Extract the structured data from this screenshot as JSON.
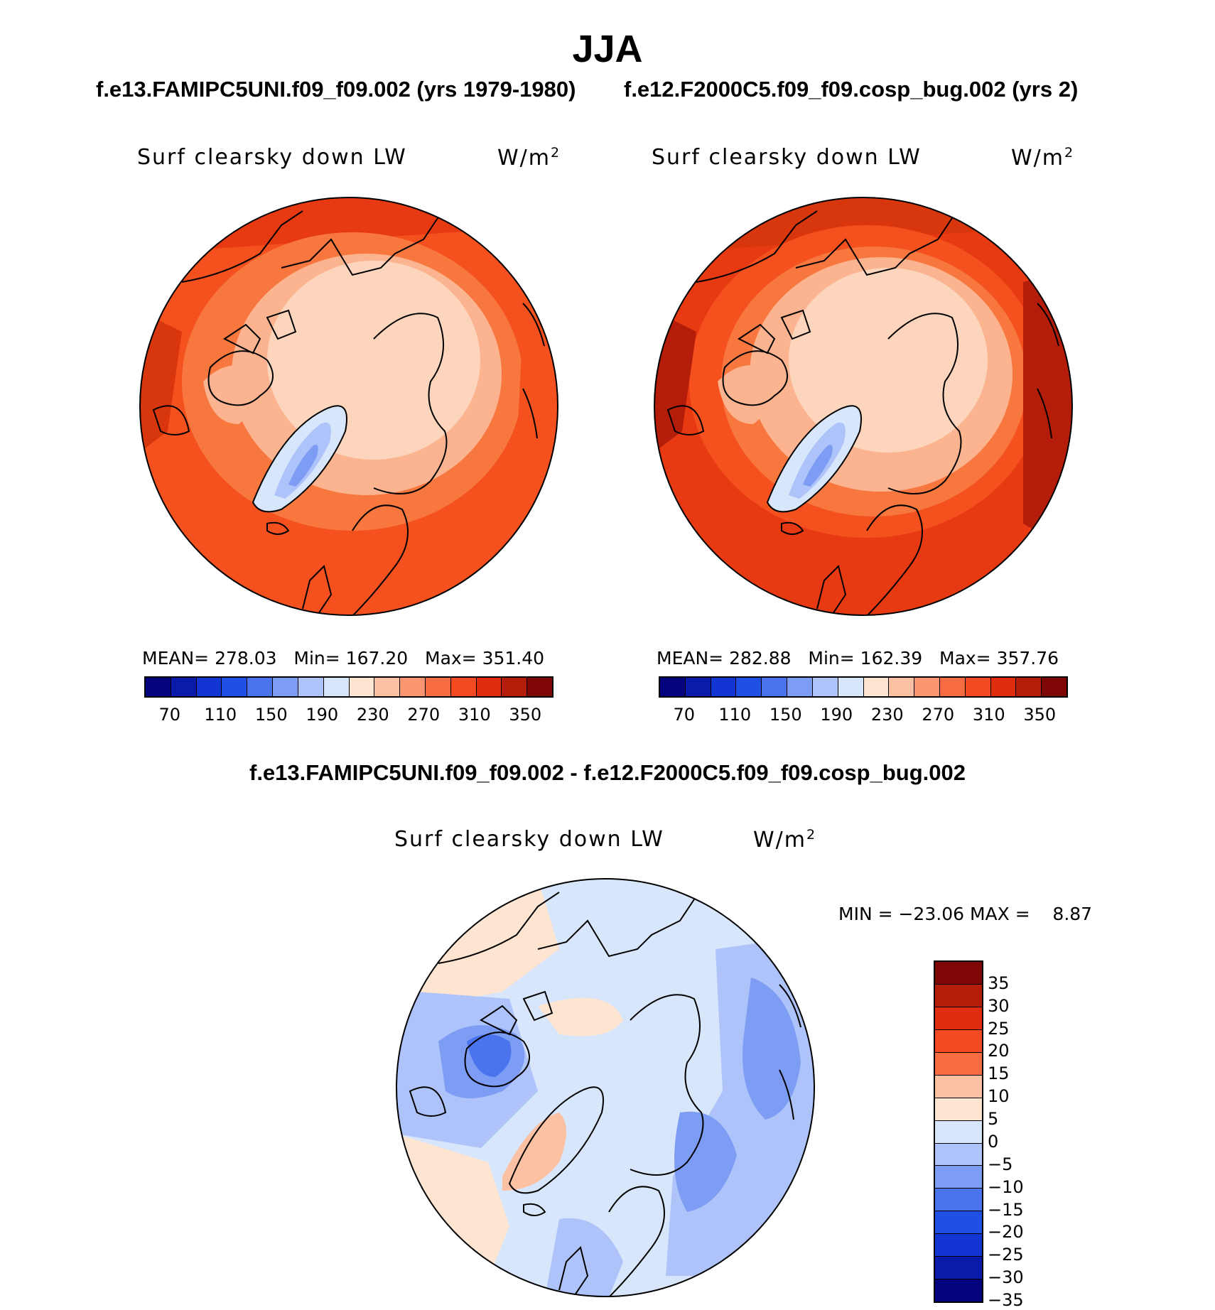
{
  "title": "JJA",
  "panel_left": {
    "case_title": "f.e13.FAMIPC5UNI.f09_f09.002 (yrs 1979-1980)",
    "label": "Surf clearsky down LW",
    "unit": "W/m",
    "unit_exp": "2",
    "stats": {
      "mean_label": "MEAN=",
      "mean": "278.03",
      "min_label": "Min=",
      "min": "167.20",
      "max_label": "Max=",
      "max": "351.40"
    }
  },
  "panel_right": {
    "case_title": "f.e12.F2000C5.f09_f09.cosp_bug.002 (yrs 2)",
    "label": "Surf clearsky down LW",
    "unit": "W/m",
    "unit_exp": "2",
    "stats": {
      "mean_label": "MEAN=",
      "mean": "282.88",
      "min_label": "Min=",
      "min": "162.39",
      "max_label": "Max=",
      "max": "357.76"
    }
  },
  "colorbar_top": {
    "colors": [
      "#06037f",
      "#0a1bab",
      "#1235d4",
      "#1f50e6",
      "#4a74ee",
      "#7d9cf4",
      "#aec3f9",
      "#d8e6fb",
      "#fde5d2",
      "#fbc1a2",
      "#f99570",
      "#f76c40",
      "#f44a22",
      "#e02d0e",
      "#b51d0b",
      "#7e0605"
    ],
    "ticks": [
      "70",
      "110",
      "150",
      "190",
      "230",
      "270",
      "310",
      "350"
    ]
  },
  "diff": {
    "title": "f.e13.FAMIPC5UNI.f09_f09.002 - f.e12.F2000C5.f09_f09.cosp_bug.002",
    "label": "Surf clearsky down LW",
    "unit": "W/m",
    "unit_exp": "2",
    "minmax": "MIN = −23.06 MAX =    8.87",
    "colorbar": {
      "colors": [
        "#7e0605",
        "#b51d0b",
        "#e02d0e",
        "#f44a22",
        "#f76c40",
        "#fbc1a2",
        "#fde5d2",
        "#d8e6fb",
        "#aec3f9",
        "#7d9cf4",
        "#4a74ee",
        "#1f50e6",
        "#1235d4",
        "#0a1bab",
        "#06037f"
      ],
      "ticks": [
        "35",
        "30",
        "25",
        "20",
        "15",
        "10",
        "5",
        "0",
        "−5",
        "−10",
        "−15",
        "−20",
        "−25",
        "−30",
        "−35"
      ]
    }
  },
  "map_colors": {
    "ocean_warm": "#f4511f",
    "mid": "#f7773f",
    "cool": "#fbb48f",
    "ice": "#fdd5bc",
    "greenland": "#aec3f9",
    "greenland_core": "#7d9cf4",
    "dark": "#d8360c",
    "diff_base": "#d8e6fb",
    "diff_blue": "#aec3f9",
    "diff_blue2": "#7d9cf4",
    "diff_blue3": "#4a74ee",
    "diff_orange": "#fde5d2",
    "diff_orange2": "#fbc1a2"
  }
}
